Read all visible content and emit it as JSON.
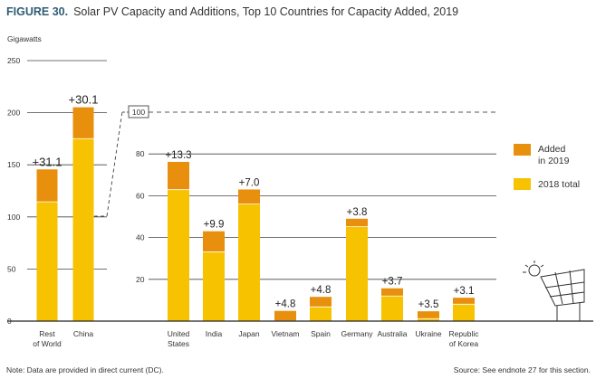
{
  "header": {
    "figure_number": "FIGURE 30.",
    "title": "Solar PV Capacity and Additions, Top 10 Countries for Capacity Added, 2019"
  },
  "footer": {
    "note": "Note: Data are provided in direct current (DC).",
    "source": "Source: See endnote 27 for this section."
  },
  "colors": {
    "added": "#E8900E",
    "total": "#F7C200",
    "grid": "#3a3a3a"
  },
  "chart_data": {
    "type": "bar",
    "stacked": true,
    "title": "Solar PV Capacity and Additions, Top 10 Countries for Capacity Added, 2019",
    "ylabel": "Gigawatts",
    "legend": [
      {
        "key": "added",
        "label_line1": "Added",
        "label_line2": "in 2019"
      },
      {
        "key": "total",
        "label_line1": "2018 total",
        "label_line2": ""
      }
    ],
    "left_panel": {
      "ylim": [
        0,
        250
      ],
      "yticks": [
        "0",
        "50",
        "100",
        "150",
        "200",
        "250"
      ],
      "bars": [
        {
          "category_line1": "Rest",
          "category_line2": "of World",
          "total_2018": 114.5,
          "added_2019": 31.1,
          "label": "+31.1"
        },
        {
          "category_line1": "China",
          "category_line2": "",
          "total_2018": 175.1,
          "added_2019": 30.1,
          "label": "+30.1"
        }
      ]
    },
    "zoom_marker": "100",
    "right_panel": {
      "ylim": [
        0,
        100
      ],
      "yticks": [
        "20",
        "40",
        "60",
        "80"
      ],
      "bars": [
        {
          "category_line1": "United",
          "category_line2": "States",
          "total_2018": 62.9,
          "added_2019": 13.3,
          "label": "+13.3"
        },
        {
          "category_line1": "India",
          "category_line2": "",
          "total_2018": 33.1,
          "added_2019": 9.9,
          "label": "+9.9"
        },
        {
          "category_line1": "Japan",
          "category_line2": "",
          "total_2018": 56.0,
          "added_2019": 7.0,
          "label": "+7.0"
        },
        {
          "category_line1": "Vietnam",
          "category_line2": "",
          "total_2018": 0.1,
          "added_2019": 4.8,
          "label": "+4.8"
        },
        {
          "category_line1": "Spain",
          "category_line2": "",
          "total_2018": 6.8,
          "added_2019": 4.8,
          "label": "+4.8"
        },
        {
          "category_line1": "Germany",
          "category_line2": "",
          "total_2018": 45.2,
          "added_2019": 3.8,
          "label": "+3.8"
        },
        {
          "category_line1": "Australia",
          "category_line2": "",
          "total_2018": 12.0,
          "added_2019": 3.7,
          "label": "+3.7"
        },
        {
          "category_line1": "Ukraine",
          "category_line2": "",
          "total_2018": 1.2,
          "added_2019": 3.5,
          "label": "+3.5"
        },
        {
          "category_line1": "Republic",
          "category_line2": "of Korea",
          "total_2018": 8.1,
          "added_2019": 3.1,
          "label": "+3.1"
        }
      ]
    }
  }
}
